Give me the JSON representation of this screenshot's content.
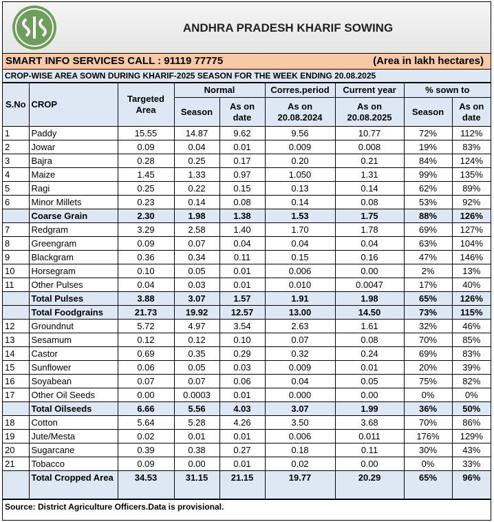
{
  "header": {
    "title": "ANDHRA PRADESH KHARIF SOWING",
    "info": "SMART INFO SERVICES CALL : 91119 77775",
    "unit": "(Area in lakh hectares)",
    "subtitle": "CROP-WISE AREA SOWN DURING KHARIF-2025 SEASON FOR THE WEEK ENDING 20.08.2025"
  },
  "table": {
    "columns": {
      "sno": "S.No",
      "crop": "CROP",
      "targeted": "Targeted Area",
      "normal": "Normal",
      "normal_season": "Season",
      "normal_date": "As on date",
      "corres": "Corres.period",
      "corres_date": "As on 20.08.2024",
      "current": "Current year",
      "current_date": "As on 20.08.2025",
      "pct": "% sown to",
      "pct_season": "Season",
      "pct_date": "As on date"
    },
    "rows": [
      {
        "sno": "1",
        "cells": [
          "Paddy",
          "15.55",
          "14.87",
          "9.62",
          "9.56",
          "10.77",
          "72%",
          "112%"
        ]
      },
      {
        "sno": "2",
        "cells": [
          "Jowar",
          "0.09",
          "0.04",
          "0.01",
          "0.009",
          "0.008",
          "19%",
          "83%"
        ]
      },
      {
        "sno": "3",
        "cells": [
          "Bajra",
          "0.28",
          "0.25",
          "0.17",
          "0.20",
          "0.21",
          "84%",
          "124%"
        ]
      },
      {
        "sno": "4",
        "cells": [
          "Maize",
          "1.45",
          "1.33",
          "0.97",
          "1.050",
          "1.31",
          "99%",
          "135%"
        ]
      },
      {
        "sno": "5",
        "cells": [
          "Ragi",
          "0.25",
          "0.22",
          "0.15",
          "0.13",
          "0.14",
          "62%",
          "89%"
        ]
      },
      {
        "sno": "6",
        "cells": [
          "Minor Millets",
          "0.23",
          "0.14",
          "0.08",
          "0.14",
          "0.08",
          "53%",
          "92%"
        ]
      },
      {
        "cells": [
          "Coarse Grain",
          "2.30",
          "1.98",
          "1.38",
          "1.53",
          "1.75",
          "88%",
          "126%"
        ]
      },
      {
        "sno": "7",
        "cells": [
          "Redgram",
          "3.29",
          "2.58",
          "1.40",
          "1.70",
          "1.78",
          "69%",
          "127%"
        ]
      },
      {
        "sno": "8",
        "cells": [
          "Greengram",
          "0.09",
          "0.07",
          "0.04",
          "0.04",
          "0.04",
          "63%",
          "104%"
        ]
      },
      {
        "sno": "9",
        "cells": [
          "Blackgram",
          "0.36",
          "0.34",
          "0.11",
          "0.15",
          "0.16",
          "47%",
          "146%"
        ]
      },
      {
        "sno": "10",
        "cells": [
          "Horsegram",
          "0.10",
          "0.05",
          "0.01",
          "0.006",
          "0.00",
          "2%",
          "13%"
        ]
      },
      {
        "sno": "11",
        "cells": [
          "Other Pulses",
          "0.04",
          "0.03",
          "0.01",
          "0.010",
          "0.0047",
          "17%",
          "40%"
        ]
      },
      {
        "cells": [
          "Total Pulses",
          "3.88",
          "3.07",
          "1.57",
          "1.91",
          "1.98",
          "65%",
          "126%"
        ]
      },
      {
        "cells": [
          "Total Foodgrains",
          "21.73",
          "19.92",
          "12.57",
          "13.00",
          "14.50",
          "73%",
          "115%"
        ]
      },
      {
        "sno": "12",
        "cells": [
          "Groundnut",
          "5.72",
          "4.97",
          "3.54",
          "2.63",
          "1.61",
          "32%",
          "46%"
        ]
      },
      {
        "sno": "13",
        "cells": [
          "Sesamum",
          "0.12",
          "0.12",
          "0.10",
          "0.07",
          "0.08",
          "70%",
          "85%"
        ]
      },
      {
        "sno": "14",
        "cells": [
          "Castor",
          "0.69",
          "0.35",
          "0.29",
          "0.32",
          "0.24",
          "69%",
          "83%"
        ]
      },
      {
        "sno": "15",
        "cells": [
          "Sunflower",
          "0.06",
          "0.05",
          "0.03",
          "0.009",
          "0.01",
          "20%",
          "39%"
        ]
      },
      {
        "sno": "16",
        "cells": [
          "Soyabean",
          "0.07",
          "0.07",
          "0.06",
          "0.04",
          "0.05",
          "75%",
          "82%"
        ]
      },
      {
        "sno": "17",
        "cells": [
          "Other Oil Seeds",
          "0.00",
          "0.0003",
          "0.01",
          "0.000",
          "0.00",
          "0%",
          "0%"
        ]
      },
      {
        "cells": [
          "Total Oilseeds",
          "6.66",
          "5.56",
          "4.03",
          "3.07",
          "1.99",
          "36%",
          "50%"
        ]
      },
      {
        "sno": "18",
        "cells": [
          "Cotton",
          "5.64",
          "5.28",
          "4.26",
          "3.50",
          "3.68",
          "70%",
          "86%"
        ]
      },
      {
        "sno": "19",
        "cells": [
          "Jute/Mesta",
          "0.02",
          "0.01",
          "0.01",
          "0.006",
          "0.011",
          "176%",
          "129%"
        ]
      },
      {
        "sno": "20",
        "cells": [
          "Sugarcane",
          "0.39",
          "0.38",
          "0.27",
          "0.18",
          "0.11",
          "30%",
          "43%"
        ]
      },
      {
        "sno": "21",
        "cells": [
          "Tobacco",
          "0.09",
          "0.00",
          "0.01",
          "0.02",
          "0.00",
          "0%",
          "33%"
        ]
      },
      {
        "cells": [
          "Total Cropped Area",
          "34.53",
          "31.15",
          "21.15",
          "19.77",
          "20.29",
          "65%",
          "96%"
        ]
      }
    ]
  },
  "footer": {
    "source": "Source:  District  Agriculture Officers.Data is provisional."
  }
}
